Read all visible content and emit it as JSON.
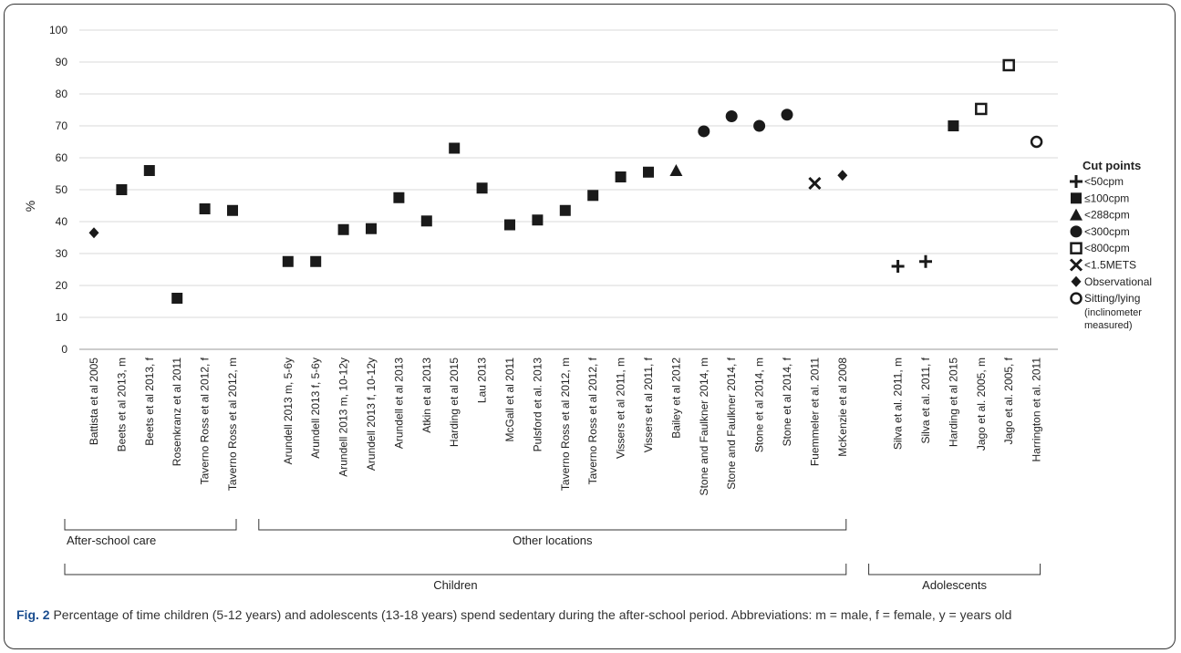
{
  "chart_data": {
    "type": "scatter",
    "ylabel": "%",
    "ylim": [
      0,
      100
    ],
    "yticks": [
      0,
      10,
      20,
      30,
      40,
      50,
      60,
      70,
      80,
      90,
      100
    ],
    "grid": true,
    "legend_position": "right",
    "legend_title": "Cut points",
    "legend": [
      {
        "marker": "plus",
        "label": "<50cpm"
      },
      {
        "marker": "square",
        "label": "≤100cpm"
      },
      {
        "marker": "triangle",
        "label": "<288cpm"
      },
      {
        "marker": "circle",
        "label": "<300cpm"
      },
      {
        "marker": "open-square",
        "label": "<800cpm"
      },
      {
        "marker": "cross",
        "label": "<1.5METS"
      },
      {
        "marker": "diamond",
        "label": "Observational"
      },
      {
        "marker": "open-circle",
        "label": "Sitting/lying",
        "sublabel1": "(inclinometer",
        "sublabel2": "measured)"
      }
    ],
    "points": [
      {
        "label": "Battista et al 2005",
        "value": 36.5,
        "marker": "diamond",
        "slot": 0
      },
      {
        "label": "Beets et al 2013, m",
        "value": 50,
        "marker": "square",
        "slot": 1
      },
      {
        "label": "Beets et al 2013, f",
        "value": 56,
        "marker": "square",
        "slot": 2
      },
      {
        "label": "Rosenkranz et al 2011",
        "value": 16,
        "marker": "square",
        "slot": 3
      },
      {
        "label": "Taverno Ross et al 2012, f",
        "value": 44,
        "marker": "square",
        "slot": 4
      },
      {
        "label": "Taverno Ross et al 2012, m",
        "value": 43.5,
        "marker": "square",
        "slot": 5
      },
      {
        "label": "Arundell 2013 m, 5-6y",
        "value": 27.5,
        "marker": "square",
        "slot": 7
      },
      {
        "label": "Arundell 2013 f, 5-6y",
        "value": 27.5,
        "marker": "square",
        "slot": 8
      },
      {
        "label": "Arundell 2013 m, 10-12y",
        "value": 37.5,
        "marker": "square",
        "slot": 9
      },
      {
        "label": "Arundell 2013 f, 10-12y",
        "value": 37.8,
        "marker": "square",
        "slot": 10
      },
      {
        "label": "Arundell et al 2013",
        "value": 47.5,
        "marker": "square",
        "slot": 11
      },
      {
        "label": "Atkin et al 2013",
        "value": 40.2,
        "marker": "square",
        "slot": 12
      },
      {
        "label": "Harding et al 2015",
        "value": 63,
        "marker": "square",
        "slot": 13
      },
      {
        "label": "Lau 2013",
        "value": 50.5,
        "marker": "square",
        "slot": 14
      },
      {
        "label": "McGall et al 2011",
        "value": 39,
        "marker": "square",
        "slot": 15
      },
      {
        "label": "Pulsford et al. 2013",
        "value": 40.5,
        "marker": "square",
        "slot": 16
      },
      {
        "label": "Taverno Ross et al 2012, m",
        "value": 43.5,
        "marker": "square",
        "slot": 17
      },
      {
        "label": "Taverno Ross et al 2012, f",
        "value": 48.2,
        "marker": "square",
        "slot": 18
      },
      {
        "label": "Vissers et al 2011, m",
        "value": 54,
        "marker": "square",
        "slot": 19
      },
      {
        "label": "Vissers et al 2011, f",
        "value": 55.5,
        "marker": "square",
        "slot": 20
      },
      {
        "label": "Bailey et al 2012",
        "value": 56,
        "marker": "triangle",
        "slot": 21
      },
      {
        "label": "Stone and Faulkner 2014, m",
        "value": 68.3,
        "marker": "circle",
        "slot": 22
      },
      {
        "label": "Stone and Faulkner 2014, f",
        "value": 73,
        "marker": "circle",
        "slot": 23
      },
      {
        "label": "Stone et al 2014, m",
        "value": 70,
        "marker": "circle",
        "slot": 24
      },
      {
        "label": "Stone et al 2014, f",
        "value": 73.5,
        "marker": "circle",
        "slot": 25
      },
      {
        "label": "Fuemmeler et al. 2011",
        "value": 52,
        "marker": "cross",
        "slot": 26
      },
      {
        "label": "McKenzie et al 2008",
        "value": 54.5,
        "marker": "diamond",
        "slot": 27
      },
      {
        "label": "Silva et al. 2011, m",
        "value": 26,
        "marker": "plus",
        "slot": 29
      },
      {
        "label": "Silva et al. 2011, f",
        "value": 27.5,
        "marker": "plus",
        "slot": 30
      },
      {
        "label": "Harding et al 2015",
        "value": 70,
        "marker": "square",
        "slot": 31
      },
      {
        "label": "Jago et al. 2005, m",
        "value": 75.3,
        "marker": "open-square",
        "slot": 32
      },
      {
        "label": "Jago et al. 2005, f",
        "value": 89,
        "marker": "open-square",
        "slot": 33
      },
      {
        "label": "Harrington et al. 2011",
        "value": 65,
        "marker": "open-circle",
        "slot": 34
      }
    ],
    "groups": [
      {
        "label": "After-school care",
        "from_slot": 0,
        "to_slot": 5,
        "level": 1
      },
      {
        "label": "Other locations",
        "from_slot": 7,
        "to_slot": 27,
        "level": 1
      },
      {
        "label": "Children",
        "from_slot": 0,
        "to_slot": 27,
        "level": 2
      },
      {
        "label": "Adolescents",
        "from_slot": 29,
        "to_slot": 34,
        "level": 2
      }
    ]
  },
  "caption": {
    "figure_label": "Fig. 2",
    "text": " Percentage of time children (5-12 years) and adolescents (13-18 years) spend sedentary during the after-school period. Abbreviations: m = male, f = female, y = years old"
  }
}
